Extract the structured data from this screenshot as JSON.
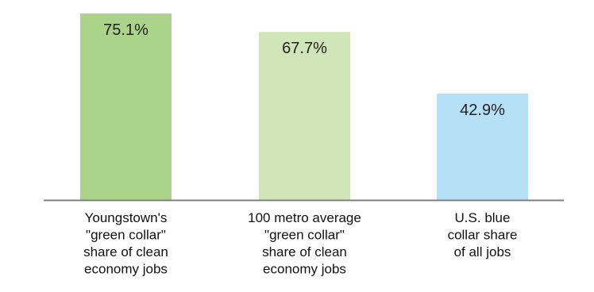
{
  "chart_data": {
    "type": "bar",
    "title": "",
    "xlabel": "",
    "ylabel": "",
    "ylim": [
      0,
      78
    ],
    "grid": false,
    "legend": "none",
    "categories": [
      [
        "Youngstown's",
        "\"green collar\"",
        "share of clean",
        "economy jobs"
      ],
      [
        "100 metro average",
        "\"green collar\"",
        "share of clean",
        "economy jobs"
      ],
      [
        "U.S. blue",
        "collar share",
        "of all jobs"
      ]
    ],
    "values": [
      75.1,
      67.7,
      42.9
    ],
    "value_labels": [
      "75.1%",
      "67.7%",
      "42.9%"
    ],
    "colors": [
      "#acd38a",
      "#d0e6b8",
      "#b5e0f6"
    ],
    "axis_color": "#7f7f7f"
  }
}
